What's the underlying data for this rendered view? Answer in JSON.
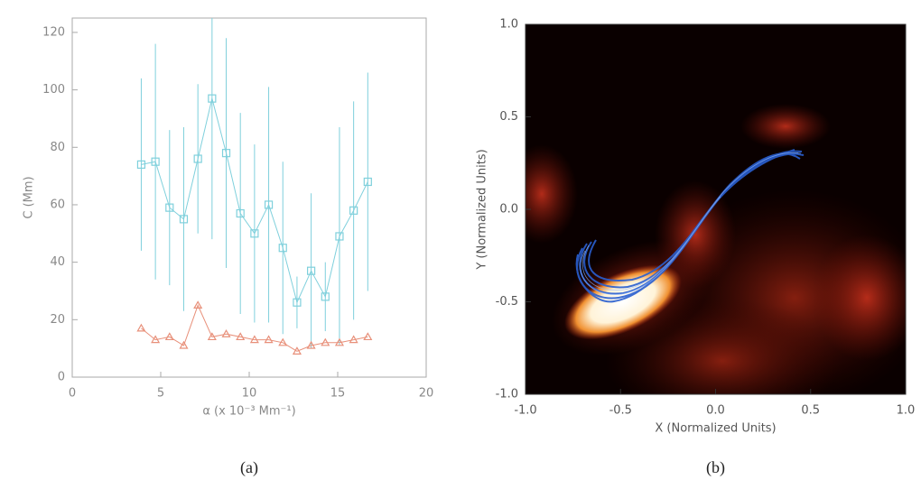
{
  "chart_data": [
    {
      "type": "line",
      "xlabel": "α (x 10⁻³ Mm⁻¹)",
      "ylabel": "C (Mm)",
      "caption": "(a)",
      "xlim": [
        0,
        20
      ],
      "xticks": [
        0,
        5,
        10,
        15,
        20
      ],
      "ylim": [
        0,
        125
      ],
      "yticks": [
        0,
        20,
        40,
        60,
        80,
        100,
        120
      ],
      "x": [
        3.9,
        4.7,
        5.5,
        6.3,
        7.1,
        7.9,
        8.7,
        9.5,
        10.3,
        11.1,
        11.9,
        12.7,
        13.5,
        14.3,
        15.1,
        15.9,
        16.7
      ],
      "series": [
        {
          "color": "#7fd0dc",
          "marker": "square",
          "values": [
            74,
            75,
            59,
            55,
            76,
            97,
            78,
            57,
            50,
            60,
            45,
            26,
            37,
            28,
            49,
            58,
            68
          ],
          "errors": [
            30,
            41,
            27,
            32,
            26,
            49,
            40,
            35,
            31,
            41,
            30,
            9,
            27,
            12,
            38,
            38,
            38
          ]
        },
        {
          "color": "#e8907a",
          "marker": "triangle",
          "values": [
            17,
            13,
            14,
            11,
            25,
            14,
            15,
            14,
            13,
            13,
            12,
            9,
            11,
            12,
            12,
            13,
            14
          ]
        }
      ]
    },
    {
      "type": "image",
      "xlabel": "X (Normalized Units)",
      "ylabel": "Y (Normalized Units)",
      "caption": "(b)",
      "xlim": [
        -1,
        1
      ],
      "xticks": [
        {
          "value": -1,
          "label": "-1.0"
        },
        -0.5,
        {
          "value": 0,
          "label": "0.0"
        },
        0.5,
        {
          "value": 1,
          "label": "1.0"
        }
      ],
      "ylim": [
        -1,
        1
      ],
      "yticks": [
        {
          "value": -1,
          "label": "-1.0"
        },
        -0.5,
        {
          "value": 0,
          "label": "0.0"
        },
        0.5,
        {
          "value": 1,
          "label": "1.0"
        }
      ]
    }
  ]
}
